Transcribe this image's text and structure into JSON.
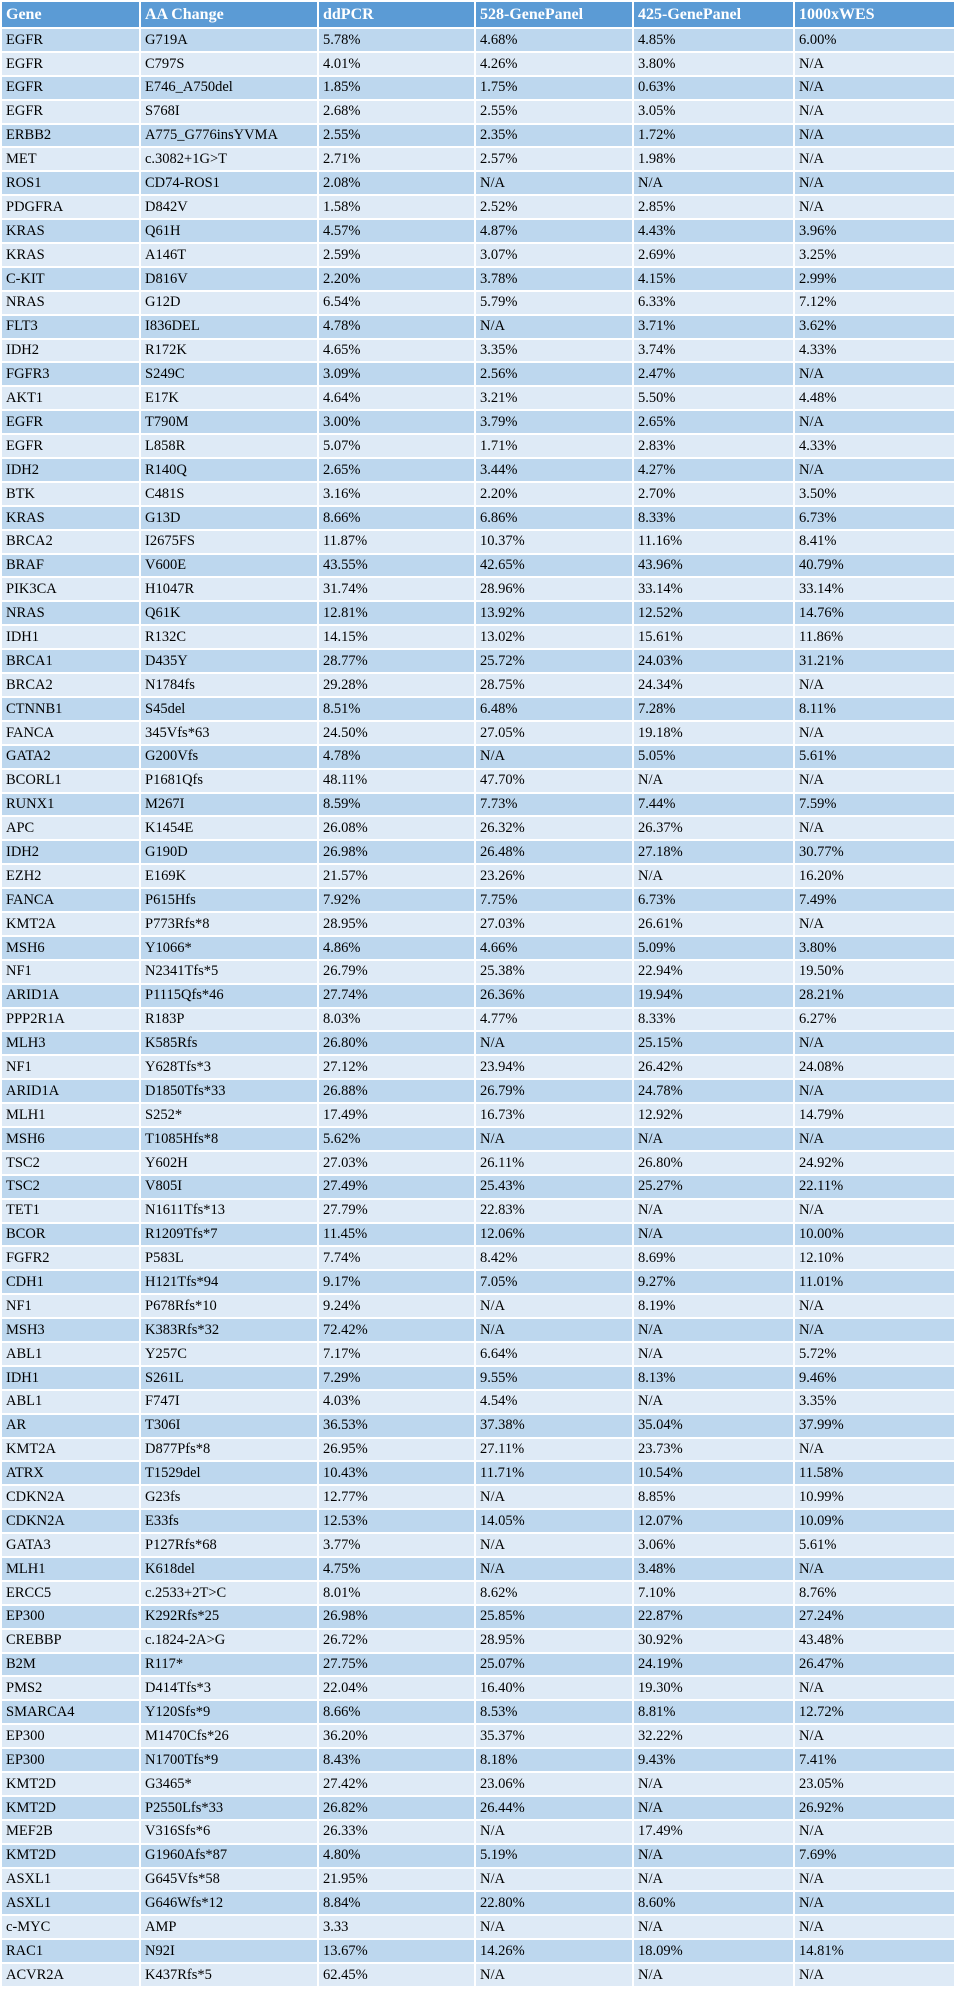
{
  "colors": {
    "header_bg": "#5B9BD5",
    "header_text": "#FFFFFF",
    "row_band_dark": "#BDD7EE",
    "row_band_light": "#DEEAF6",
    "gridline": "#FFFFFF",
    "body_text": "#000000"
  },
  "table": {
    "columns": [
      "Gene",
      "AA Change",
      "ddPCR",
      "528-GenePanel",
      "425-GenePanel",
      "1000xWES"
    ],
    "cell_names": [
      "cell-gene",
      "cell-aa-change",
      "cell-ddpcr",
      "cell-528-genepanel",
      "cell-425-genepanel",
      "cell-1000xwes"
    ],
    "rows": [
      [
        "EGFR",
        "G719A",
        "5.78%",
        "4.68%",
        "4.85%",
        "6.00%"
      ],
      [
        "EGFR",
        "C797S",
        "4.01%",
        "4.26%",
        "3.80%",
        "N/A"
      ],
      [
        "EGFR",
        "E746_A750del",
        "1.85%",
        "1.75%",
        "0.63%",
        "N/A"
      ],
      [
        "EGFR",
        "S768I",
        "2.68%",
        "2.55%",
        "3.05%",
        "N/A"
      ],
      [
        "ERBB2",
        "A775_G776insYVMA",
        "2.55%",
        "2.35%",
        "1.72%",
        "N/A"
      ],
      [
        "MET",
        "c.3082+1G>T",
        "2.71%",
        "2.57%",
        "1.98%",
        "N/A"
      ],
      [
        "ROS1",
        "CD74-ROS1",
        "2.08%",
        "N/A",
        "N/A",
        "N/A"
      ],
      [
        "PDGFRA",
        "D842V",
        "1.58%",
        "2.52%",
        "2.85%",
        "N/A"
      ],
      [
        "KRAS",
        "Q61H",
        "4.57%",
        "4.87%",
        "4.43%",
        "3.96%"
      ],
      [
        "KRAS",
        "A146T",
        "2.59%",
        "3.07%",
        "2.69%",
        "3.25%"
      ],
      [
        "C-KIT",
        "D816V",
        "2.20%",
        "3.78%",
        "4.15%",
        "2.99%"
      ],
      [
        "NRAS",
        "G12D",
        "6.54%",
        "5.79%",
        "6.33%",
        "7.12%"
      ],
      [
        "FLT3",
        "I836DEL",
        "4.78%",
        "N/A",
        "3.71%",
        "3.62%"
      ],
      [
        "IDH2",
        "R172K",
        "4.65%",
        "3.35%",
        "3.74%",
        "4.33%"
      ],
      [
        "FGFR3",
        "S249C",
        "3.09%",
        "2.56%",
        "2.47%",
        "N/A"
      ],
      [
        "AKT1",
        "E17K",
        "4.64%",
        "3.21%",
        "5.50%",
        "4.48%"
      ],
      [
        "EGFR",
        "T790M",
        "3.00%",
        "3.79%",
        "2.65%",
        "N/A"
      ],
      [
        "EGFR",
        "L858R",
        "5.07%",
        "1.71%",
        "2.83%",
        "4.33%"
      ],
      [
        "IDH2",
        "R140Q",
        "2.65%",
        "3.44%",
        "4.27%",
        "N/A"
      ],
      [
        "BTK",
        "C481S",
        "3.16%",
        "2.20%",
        "2.70%",
        "3.50%"
      ],
      [
        "KRAS",
        "G13D",
        "8.66%",
        "6.86%",
        "8.33%",
        "6.73%"
      ],
      [
        "BRCA2",
        "I2675FS",
        "11.87%",
        "10.37%",
        "11.16%",
        "8.41%"
      ],
      [
        "BRAF",
        "V600E",
        "43.55%",
        "42.65%",
        "43.96%",
        "40.79%"
      ],
      [
        "PIK3CA",
        "H1047R",
        "31.74%",
        "28.96%",
        "33.14%",
        "33.14%"
      ],
      [
        "NRAS",
        "Q61K",
        "12.81%",
        "13.92%",
        "12.52%",
        "14.76%"
      ],
      [
        "IDH1",
        "R132C",
        "14.15%",
        "13.02%",
        "15.61%",
        "11.86%"
      ],
      [
        "BRCA1",
        "D435Y",
        "28.77%",
        "25.72%",
        "24.03%",
        "31.21%"
      ],
      [
        "BRCA2",
        "N1784fs",
        "29.28%",
        "28.75%",
        "24.34%",
        "N/A"
      ],
      [
        "CTNNB1",
        "S45del",
        "8.51%",
        "6.48%",
        "7.28%",
        "8.11%"
      ],
      [
        "FANCA",
        "345Vfs*63",
        "24.50%",
        "27.05%",
        "19.18%",
        "N/A"
      ],
      [
        "GATA2",
        "G200Vfs",
        "4.78%",
        "N/A",
        "5.05%",
        "5.61%"
      ],
      [
        "BCORL1",
        "P1681Qfs",
        "48.11%",
        "47.70%",
        "N/A",
        "N/A"
      ],
      [
        "RUNX1",
        "M267I",
        "8.59%",
        "7.73%",
        "7.44%",
        "7.59%"
      ],
      [
        "APC",
        "K1454E",
        "26.08%",
        "26.32%",
        "26.37%",
        "N/A"
      ],
      [
        "IDH2",
        "G190D",
        "26.98%",
        "26.48%",
        "27.18%",
        "30.77%"
      ],
      [
        "EZH2",
        "E169K",
        "21.57%",
        "23.26%",
        "N/A",
        "16.20%"
      ],
      [
        "FANCA",
        "P615Hfs",
        "7.92%",
        "7.75%",
        "6.73%",
        "7.49%"
      ],
      [
        "KMT2A",
        "P773Rfs*8",
        "28.95%",
        "27.03%",
        "26.61%",
        "N/A"
      ],
      [
        "MSH6",
        "Y1066*",
        "4.86%",
        "4.66%",
        "5.09%",
        "3.80%"
      ],
      [
        "NF1",
        "N2341Tfs*5",
        "26.79%",
        "25.38%",
        "22.94%",
        "19.50%"
      ],
      [
        "ARID1A",
        "P1115Qfs*46",
        "27.74%",
        "26.36%",
        "19.94%",
        "28.21%"
      ],
      [
        "PPP2R1A",
        "R183P",
        "8.03%",
        "4.77%",
        "8.33%",
        "6.27%"
      ],
      [
        "MLH3",
        "K585Rfs",
        "26.80%",
        "N/A",
        "25.15%",
        "N/A"
      ],
      [
        "NF1",
        "Y628Tfs*3",
        "27.12%",
        "23.94%",
        "26.42%",
        "24.08%"
      ],
      [
        "ARID1A",
        "D1850Tfs*33",
        "26.88%",
        "26.79%",
        "24.78%",
        "N/A"
      ],
      [
        "MLH1",
        "S252*",
        "17.49%",
        "16.73%",
        "12.92%",
        "14.79%"
      ],
      [
        "MSH6",
        "T1085Hfs*8",
        "5.62%",
        "N/A",
        "N/A",
        "N/A"
      ],
      [
        "TSC2",
        "Y602H",
        "27.03%",
        "26.11%",
        "26.80%",
        "24.92%"
      ],
      [
        "TSC2",
        "V805I",
        "27.49%",
        "25.43%",
        "25.27%",
        "22.11%"
      ],
      [
        "TET1",
        "N1611Tfs*13",
        "27.79%",
        "22.83%",
        "N/A",
        "N/A"
      ],
      [
        "BCOR",
        "R1209Tfs*7",
        "11.45%",
        "12.06%",
        "N/A",
        "10.00%"
      ],
      [
        "FGFR2",
        "P583L",
        "7.74%",
        "8.42%",
        "8.69%",
        "12.10%"
      ],
      [
        "CDH1",
        "H121Tfs*94",
        "9.17%",
        "7.05%",
        "9.27%",
        "11.01%"
      ],
      [
        "NF1",
        "P678Rfs*10",
        "9.24%",
        "N/A",
        "8.19%",
        "N/A"
      ],
      [
        "MSH3",
        "K383Rfs*32",
        "72.42%",
        "N/A",
        "N/A",
        "N/A"
      ],
      [
        "ABL1",
        "Y257C",
        "7.17%",
        "6.64%",
        "N/A",
        "5.72%"
      ],
      [
        "IDH1",
        "S261L",
        "7.29%",
        "9.55%",
        "8.13%",
        "9.46%"
      ],
      [
        "ABL1",
        "F747I",
        "4.03%",
        "4.54%",
        "N/A",
        "3.35%"
      ],
      [
        "AR",
        "T306I",
        "36.53%",
        "37.38%",
        "35.04%",
        "37.99%"
      ],
      [
        "KMT2A",
        "D877Pfs*8",
        "26.95%",
        "27.11%",
        "23.73%",
        "N/A"
      ],
      [
        "ATRX",
        "T1529del",
        "10.43%",
        "11.71%",
        "10.54%",
        "11.58%"
      ],
      [
        "CDKN2A",
        "G23fs",
        "12.77%",
        "N/A",
        "8.85%",
        "10.99%"
      ],
      [
        "CDKN2A",
        "E33fs",
        "12.53%",
        "14.05%",
        "12.07%",
        "10.09%"
      ],
      [
        "GATA3",
        "P127Rfs*68",
        "3.77%",
        "N/A",
        "3.06%",
        "5.61%"
      ],
      [
        "MLH1",
        "K618del",
        "4.75%",
        "N/A",
        "3.48%",
        "N/A"
      ],
      [
        "ERCC5",
        "c.2533+2T>C",
        "8.01%",
        "8.62%",
        "7.10%",
        "8.76%"
      ],
      [
        "EP300",
        "K292Rfs*25",
        "26.98%",
        "25.85%",
        "22.87%",
        "27.24%"
      ],
      [
        "CREBBP",
        "c.1824-2A>G",
        "26.72%",
        "28.95%",
        "30.92%",
        "43.48%"
      ],
      [
        "B2M",
        "R117*",
        "27.75%",
        "25.07%",
        "24.19%",
        "26.47%"
      ],
      [
        "PMS2",
        "D414Tfs*3",
        "22.04%",
        "16.40%",
        "19.30%",
        "N/A"
      ],
      [
        "SMARCA4",
        "Y120Sfs*9",
        "8.66%",
        "8.53%",
        "8.81%",
        "12.72%"
      ],
      [
        "EP300",
        "M1470Cfs*26",
        "36.20%",
        "35.37%",
        "32.22%",
        "N/A"
      ],
      [
        "EP300",
        "N1700Tfs*9",
        "8.43%",
        "8.18%",
        "9.43%",
        "7.41%"
      ],
      [
        "KMT2D",
        "G3465*",
        "27.42%",
        "23.06%",
        "N/A",
        "23.05%"
      ],
      [
        "KMT2D",
        "P2550Lfs*33",
        "26.82%",
        "26.44%",
        "N/A",
        "26.92%"
      ],
      [
        "MEF2B",
        "V316Sfs*6",
        "26.33%",
        "N/A",
        "17.49%",
        "N/A"
      ],
      [
        "KMT2D",
        "G1960Afs*87",
        "4.80%",
        "5.19%",
        "N/A",
        "7.69%"
      ],
      [
        "ASXL1",
        "G645Vfs*58",
        "21.95%",
        "N/A",
        "N/A",
        "N/A"
      ],
      [
        "ASXL1",
        "G646Wfs*12",
        "8.84%",
        "22.80%",
        "8.60%",
        "N/A"
      ],
      [
        "c-MYC",
        "AMP",
        "3.33",
        "N/A",
        "N/A",
        "N/A"
      ],
      [
        "RAC1",
        "N92I",
        "13.67%",
        "14.26%",
        "18.09%",
        "14.81%"
      ],
      [
        "ACVR2A",
        "K437Rfs*5",
        "62.45%",
        "N/A",
        "N/A",
        "N/A"
      ]
    ]
  }
}
